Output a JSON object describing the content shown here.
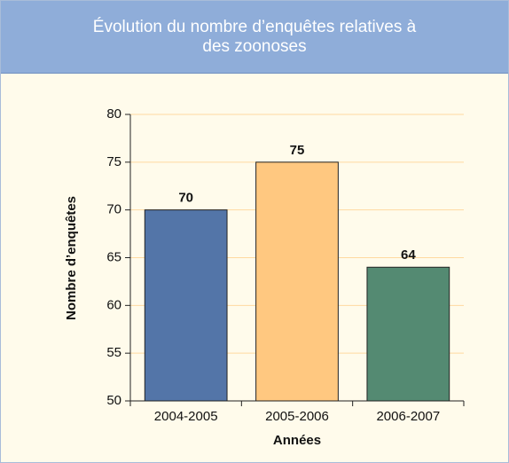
{
  "chart_data": {
    "type": "bar",
    "title": "Évolution du nombre d’enquêtes relatives à des zoonoses",
    "x_label": "Années",
    "y_label": "Nombre d’enquêtes",
    "categories": [
      "2004-2005",
      "2005-2006",
      "2006-2007"
    ],
    "values": [
      70,
      75,
      64
    ],
    "colors": [
      "#5375a8",
      "#ffc880",
      "#548a72"
    ],
    "ylim": [
      50,
      80
    ],
    "yticks": [
      50,
      55,
      60,
      65,
      70,
      75,
      80
    ],
    "grid": true
  }
}
